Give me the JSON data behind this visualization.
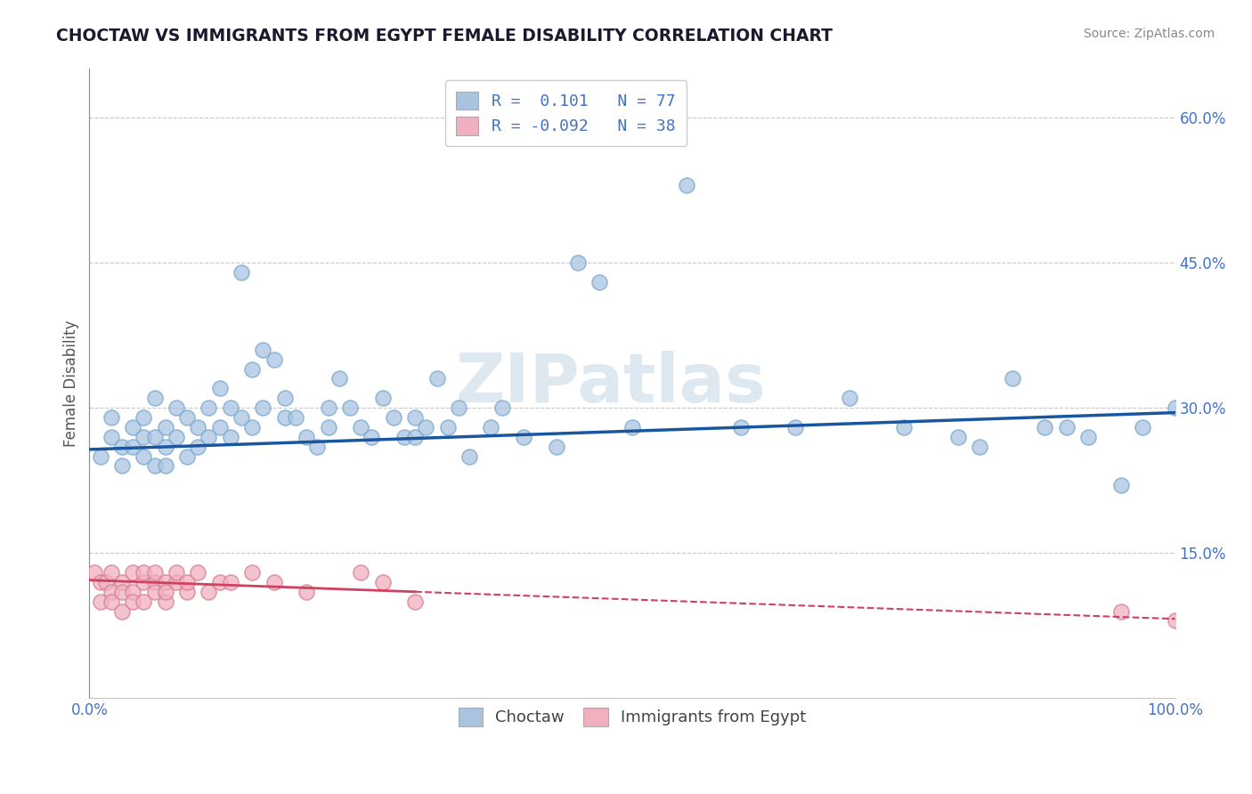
{
  "title": "CHOCTAW VS IMMIGRANTS FROM EGYPT FEMALE DISABILITY CORRELATION CHART",
  "source": "Source: ZipAtlas.com",
  "ylabel": "Female Disability",
  "xlabel": "",
  "legend_bottom": [
    "Choctaw",
    "Immigrants from Egypt"
  ],
  "choctaw_R": 0.101,
  "choctaw_N": 77,
  "egypt_R": -0.092,
  "egypt_N": 38,
  "xlim": [
    0.0,
    1.0
  ],
  "ylim": [
    0.0,
    0.65
  ],
  "yticks": [
    0.15,
    0.3,
    0.45,
    0.6
  ],
  "ytick_labels": [
    "15.0%",
    "30.0%",
    "45.0%",
    "60.0%"
  ],
  "xticks": [
    0.0,
    1.0
  ],
  "xtick_labels": [
    "0.0%",
    "100.0%"
  ],
  "grid_color": "#c8c8c8",
  "bg_color": "#ffffff",
  "choctaw_color": "#aac4e0",
  "choctaw_edge_color": "#7aaad0",
  "choctaw_line_color": "#1a56a0",
  "egypt_color": "#f0b0c0",
  "egypt_edge_color": "#d88090",
  "egypt_line_color": "#d04060",
  "watermark_text": "ZIPatlas",
  "watermark_color": "#dde8f0",
  "choctaw_x": [
    0.01,
    0.02,
    0.02,
    0.03,
    0.03,
    0.04,
    0.04,
    0.05,
    0.05,
    0.05,
    0.06,
    0.06,
    0.06,
    0.07,
    0.07,
    0.07,
    0.08,
    0.08,
    0.09,
    0.09,
    0.1,
    0.1,
    0.11,
    0.11,
    0.12,
    0.12,
    0.13,
    0.13,
    0.14,
    0.14,
    0.15,
    0.15,
    0.16,
    0.16,
    0.17,
    0.18,
    0.18,
    0.19,
    0.2,
    0.21,
    0.22,
    0.22,
    0.23,
    0.24,
    0.25,
    0.26,
    0.27,
    0.28,
    0.29,
    0.3,
    0.3,
    0.31,
    0.32,
    0.33,
    0.34,
    0.35,
    0.37,
    0.38,
    0.4,
    0.43,
    0.45,
    0.47,
    0.5,
    0.55,
    0.6,
    0.65,
    0.7,
    0.75,
    0.8,
    0.82,
    0.85,
    0.88,
    0.9,
    0.92,
    0.95,
    0.97,
    1.0
  ],
  "choctaw_y": [
    0.25,
    0.29,
    0.27,
    0.26,
    0.24,
    0.28,
    0.26,
    0.27,
    0.25,
    0.29,
    0.24,
    0.27,
    0.31,
    0.26,
    0.24,
    0.28,
    0.27,
    0.3,
    0.25,
    0.29,
    0.28,
    0.26,
    0.3,
    0.27,
    0.28,
    0.32,
    0.27,
    0.3,
    0.29,
    0.44,
    0.28,
    0.34,
    0.36,
    0.3,
    0.35,
    0.29,
    0.31,
    0.29,
    0.27,
    0.26,
    0.3,
    0.28,
    0.33,
    0.3,
    0.28,
    0.27,
    0.31,
    0.29,
    0.27,
    0.29,
    0.27,
    0.28,
    0.33,
    0.28,
    0.3,
    0.25,
    0.28,
    0.3,
    0.27,
    0.26,
    0.45,
    0.43,
    0.28,
    0.53,
    0.28,
    0.28,
    0.31,
    0.28,
    0.27,
    0.26,
    0.33,
    0.28,
    0.28,
    0.27,
    0.22,
    0.28,
    0.3
  ],
  "egypt_x": [
    0.005,
    0.01,
    0.01,
    0.015,
    0.02,
    0.02,
    0.02,
    0.03,
    0.03,
    0.03,
    0.04,
    0.04,
    0.04,
    0.05,
    0.05,
    0.05,
    0.06,
    0.06,
    0.06,
    0.07,
    0.07,
    0.07,
    0.08,
    0.08,
    0.09,
    0.09,
    0.1,
    0.11,
    0.12,
    0.13,
    0.15,
    0.17,
    0.2,
    0.25,
    0.27,
    0.3,
    0.95,
    1.0
  ],
  "egypt_y": [
    0.13,
    0.12,
    0.1,
    0.12,
    0.13,
    0.11,
    0.1,
    0.12,
    0.11,
    0.09,
    0.13,
    0.11,
    0.1,
    0.12,
    0.13,
    0.1,
    0.12,
    0.11,
    0.13,
    0.12,
    0.1,
    0.11,
    0.12,
    0.13,
    0.11,
    0.12,
    0.13,
    0.11,
    0.12,
    0.12,
    0.13,
    0.12,
    0.11,
    0.13,
    0.12,
    0.1,
    0.09,
    0.08
  ],
  "choctaw_trendline": [
    0.257,
    0.295
  ],
  "egypt_trendline": [
    0.122,
    0.082
  ]
}
